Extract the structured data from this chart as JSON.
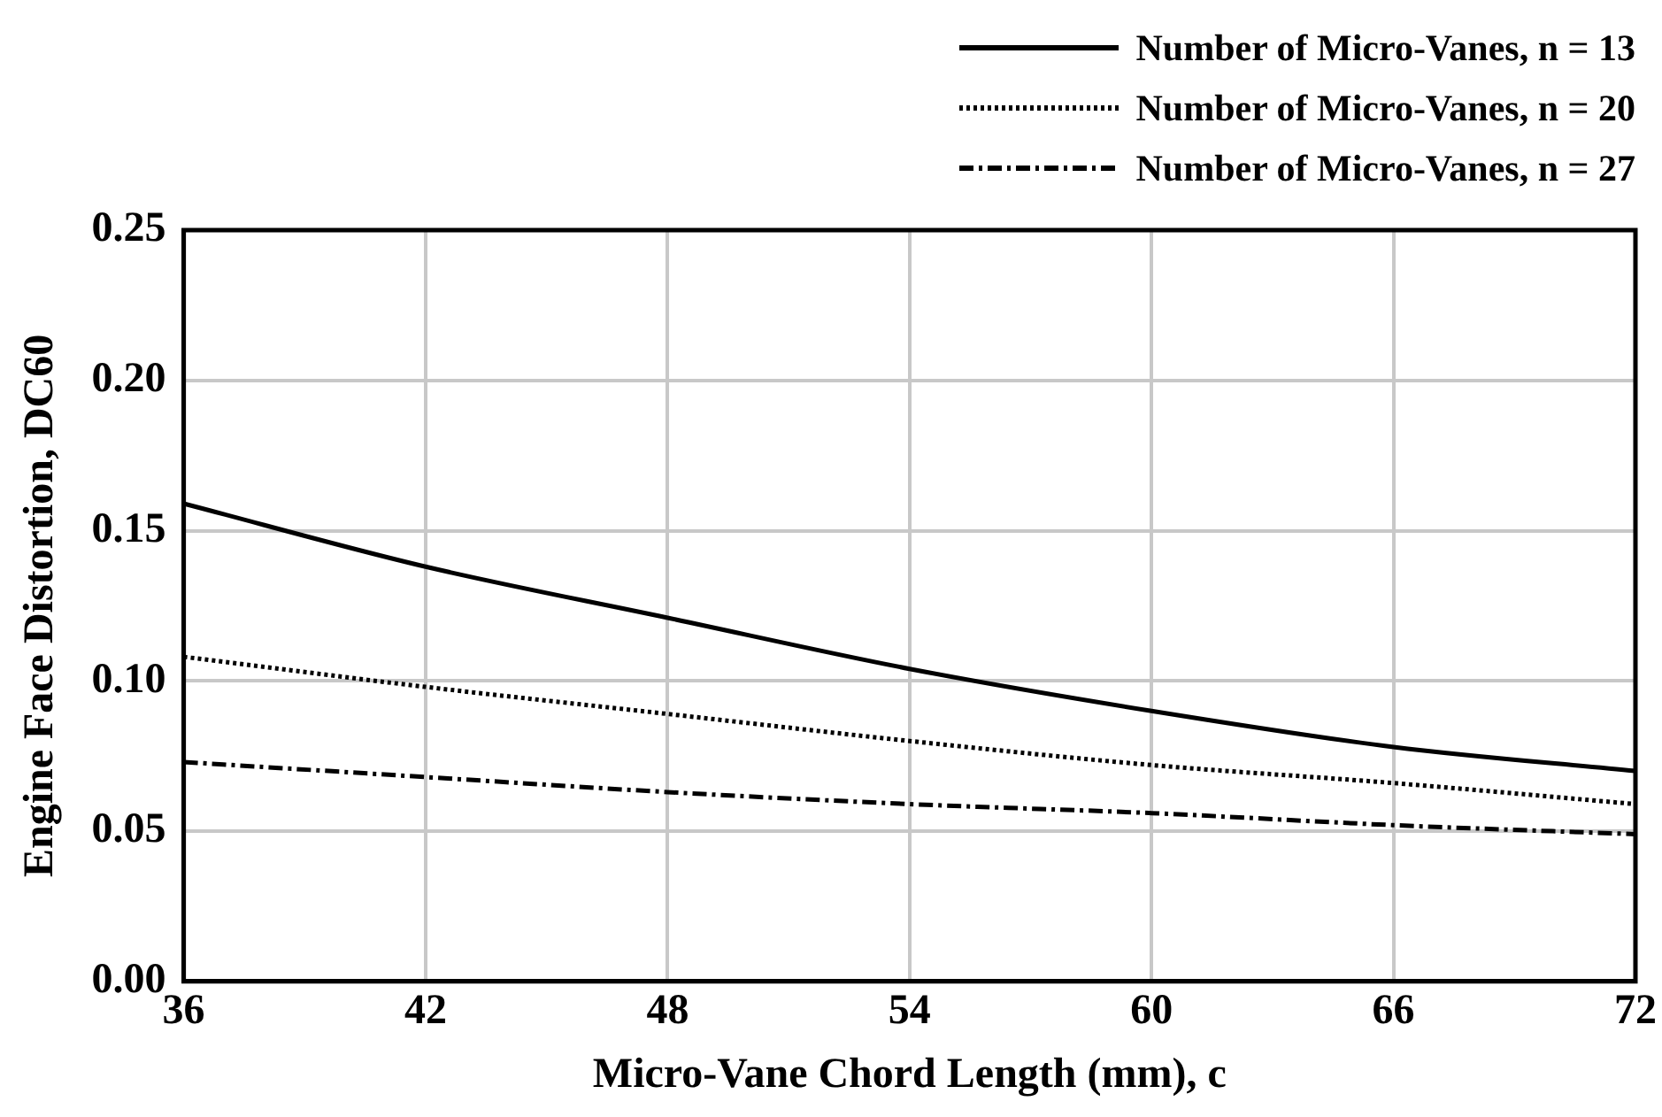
{
  "chart_data": {
    "type": "line",
    "xlabel": "Micro-Vane Chord Length (mm), c",
    "ylabel": "Engine Face Distortion, DC60",
    "x": [
      36,
      42,
      48,
      54,
      60,
      66,
      72
    ],
    "series": [
      {
        "name": "Number of Micro-Vanes, n = 13",
        "color": "#000000",
        "line_style": "solid",
        "values": [
          0.159,
          0.138,
          0.121,
          0.104,
          0.09,
          0.078,
          0.07
        ]
      },
      {
        "name": "Number of Micro-Vanes, n = 20",
        "color": "#000000",
        "line_style": "dotted",
        "values": [
          0.108,
          0.098,
          0.089,
          0.08,
          0.072,
          0.066,
          0.059
        ]
      },
      {
        "name": "Number of Micro-Vanes, n = 27",
        "color": "#000000",
        "line_style": "dashed",
        "values": [
          0.073,
          0.068,
          0.063,
          0.059,
          0.056,
          0.052,
          0.049
        ]
      }
    ],
    "xlim": [
      36,
      72
    ],
    "xticks": [
      36,
      42,
      48,
      54,
      60,
      66,
      72
    ],
    "ylim": [
      0,
      0.25
    ],
    "yticks": [
      {
        "value": 0,
        "label": "0.00"
      },
      {
        "value": 0.05,
        "label": "0.05"
      },
      {
        "value": 0.1,
        "label": "0.10"
      },
      {
        "value": 0.15,
        "label": "0.15"
      },
      {
        "value": 0.2,
        "label": "0.20"
      },
      {
        "value": 0.25,
        "label": "0.25"
      }
    ],
    "grid": true,
    "legend": "top right",
    "marker": "none"
  }
}
